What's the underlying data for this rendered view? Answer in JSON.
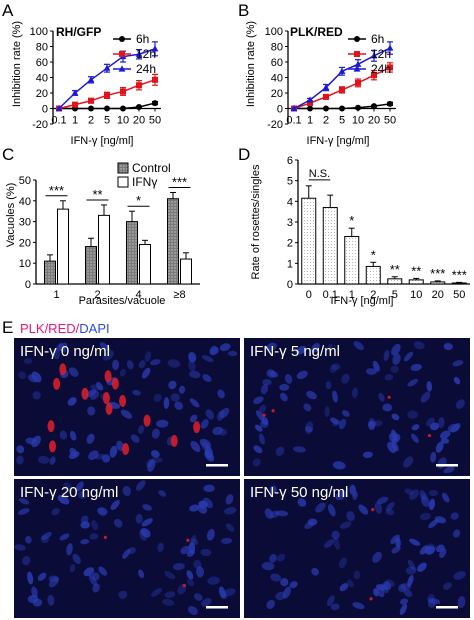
{
  "colors": {
    "h6": "#000000",
    "h12": "#e0151b",
    "h24": "#1a1ad6",
    "micro_bg": "#0b0b38",
    "nucleus": "#2a3cb0",
    "parasite": "#d41e2a",
    "dapi_label": "#2a4cd8",
    "plk_label": "#e8157a"
  },
  "panel_labels": {
    "A": "A",
    "B": "B",
    "C": "C",
    "D": "D",
    "E": "E"
  },
  "chart_data": [
    {
      "id": "A",
      "type": "line",
      "title": "RH/GFP",
      "xlabel": "IFN-γ  [ng/ml]",
      "ylabel": "Inhibition rate (%)",
      "categories": [
        "0.1",
        "1",
        "2",
        "5",
        "10",
        "20",
        "50"
      ],
      "ylim": [
        -20,
        100
      ],
      "yticks": [
        "-20",
        "0",
        "20",
        "40",
        "60",
        "80",
        "100"
      ],
      "legend_position": "top-right",
      "series": [
        {
          "name": "6h",
          "color": "#000000",
          "marker": "circle",
          "values": [
            0,
            0,
            0,
            0,
            0,
            2,
            7
          ],
          "errors": [
            0,
            0,
            0,
            0,
            0,
            1,
            2
          ]
        },
        {
          "name": "12h",
          "color": "#e0151b",
          "marker": "square",
          "values": [
            0,
            5,
            10,
            17,
            22,
            30,
            37
          ],
          "errors": [
            0,
            2,
            3,
            4,
            5,
            6,
            7
          ]
        },
        {
          "name": "24h",
          "color": "#1a1ad6",
          "marker": "triangle",
          "values": [
            0,
            20,
            37,
            52,
            67,
            70,
            77
          ],
          "errors": [
            0,
            3,
            4,
            5,
            7,
            6,
            9
          ]
        }
      ]
    },
    {
      "id": "B",
      "type": "line",
      "title": "PLK/RED",
      "xlabel": "IFN-γ  [ng/ml]",
      "ylabel": "Inhibition rate (%)",
      "categories": [
        "0.1",
        "1",
        "2",
        "5",
        "10",
        "20",
        "50"
      ],
      "ylim": [
        -20,
        100
      ],
      "yticks": [
        "-20",
        "0",
        "20",
        "40",
        "60",
        "80",
        "100"
      ],
      "legend_position": "top-right",
      "series": [
        {
          "name": "6h",
          "color": "#000000",
          "marker": "circle",
          "values": [
            0,
            0,
            0,
            0,
            1,
            3,
            6
          ],
          "errors": [
            0,
            0,
            0,
            0,
            0,
            1,
            2
          ]
        },
        {
          "name": "12h",
          "color": "#e0151b",
          "marker": "square",
          "values": [
            0,
            7,
            15,
            24,
            33,
            43,
            53
          ],
          "errors": [
            0,
            2,
            3,
            4,
            5,
            6,
            6
          ]
        },
        {
          "name": "24h",
          "color": "#1a1ad6",
          "marker": "triangle",
          "values": [
            0,
            11,
            27,
            48,
            57,
            68,
            78
          ],
          "errors": [
            0,
            2,
            4,
            5,
            6,
            7,
            8
          ]
        }
      ]
    },
    {
      "id": "C",
      "type": "bar",
      "xlabel": "Parasites/vacuole",
      "ylabel": "Vacuoles (%)",
      "categories": [
        "1",
        "2",
        "4",
        "≥8"
      ],
      "ylim": [
        0,
        50
      ],
      "yticks": [
        "0",
        "10",
        "20",
        "30",
        "40",
        "50"
      ],
      "legend_position": "top-right",
      "series": [
        {
          "name": "Control",
          "values": [
            11,
            18,
            30,
            41
          ],
          "errors": [
            3,
            4,
            5,
            3
          ]
        },
        {
          "name": "IFNγ",
          "values": [
            36,
            33,
            19,
            12
          ],
          "errors": [
            4,
            5,
            2,
            3
          ]
        }
      ],
      "significance": [
        "***",
        "**",
        "*",
        "***"
      ]
    },
    {
      "id": "D",
      "type": "bar",
      "xlabel": "IFN-γ  [ng/ml]",
      "ylabel": "Rate of rosettes/singles",
      "categories": [
        "0",
        "0.1",
        "1",
        "2",
        "5",
        "10",
        "20",
        "50"
      ],
      "ylim": [
        0,
        6
      ],
      "yticks": [
        "0",
        "1",
        "2",
        "3",
        "4",
        "5",
        "6"
      ],
      "values": [
        4.15,
        3.7,
        2.3,
        0.85,
        0.25,
        0.2,
        0.1,
        0.05
      ],
      "errors": [
        0.6,
        0.6,
        0.4,
        0.2,
        0.1,
        0.07,
        0.05,
        0.03
      ],
      "significance": [
        "",
        "",
        "*",
        "*",
        "**",
        "**",
        "***",
        "***"
      ],
      "ns_label": "N.S."
    }
  ],
  "panel_e": {
    "legend": {
      "plk": "PLK/RED",
      "sep1": "/",
      "dapi": "DAPI"
    },
    "images": [
      {
        "label": "IFN-γ 0 ng/ml"
      },
      {
        "label": "IFN-γ 5 ng/ml"
      },
      {
        "label": "IFN-γ 20 ng/ml"
      },
      {
        "label": "IFN-γ 50 ng/ml"
      }
    ]
  }
}
